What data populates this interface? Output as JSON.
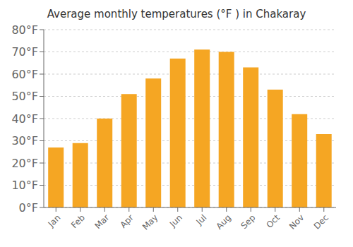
{
  "chart_data": {
    "type": "bar",
    "title": "Average monthly temperatures (°F ) in Chakaray",
    "categories": [
      "Jan",
      "Feb",
      "Mar",
      "Apr",
      "May",
      "Jun",
      "Jul",
      "Aug",
      "Sep",
      "Oct",
      "Nov",
      "Dec"
    ],
    "values": [
      27,
      29,
      40,
      51,
      58,
      67,
      71,
      70,
      63,
      53,
      42,
      33
    ],
    "color": "#F5A623",
    "ylim": [
      0,
      80
    ],
    "yticks": [
      {
        "value": 0,
        "label": "0°F"
      },
      {
        "value": 10,
        "label": "10°F"
      },
      {
        "value": 20,
        "label": "20°F"
      },
      {
        "value": 30,
        "label": "30°F"
      },
      {
        "value": 40,
        "label": "40°F"
      },
      {
        "value": 50,
        "label": "50°F"
      },
      {
        "value": 60,
        "label": "60°F"
      },
      {
        "value": 70,
        "label": "70°F"
      },
      {
        "value": 80,
        "label": "80°F"
      }
    ],
    "grid": true
  }
}
